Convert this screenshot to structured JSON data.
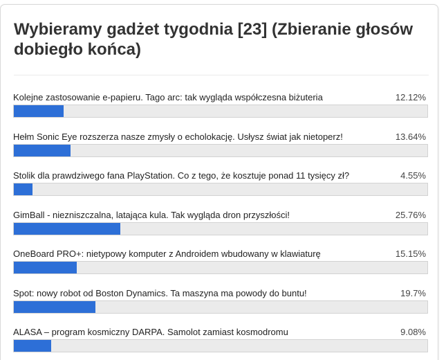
{
  "poll": {
    "title": "Wybieramy gadżet tygodnia [23] (Zbieranie głosów dobiegło końca)",
    "bar_color": "#2d6fd7",
    "options": [
      {
        "label": "Kolejne zastosowanie e-papieru. Tago arc: tak wygląda współczesna biżuteria",
        "percent_text": "12.12%",
        "percent": 12.12
      },
      {
        "label": "Hełm Sonic Eye rozszerza nasze zmysły o echolokację. Usłysz świat jak nietoperz!",
        "percent_text": "13.64%",
        "percent": 13.64
      },
      {
        "label": "Stolik dla prawdziwego fana PlayStation. Co z tego, że kosztuje ponad 11 tysięcy zł?",
        "percent_text": "4.55%",
        "percent": 4.55
      },
      {
        "label": "GimBall - niezniszczalna, latająca kula. Tak wygląda dron przyszłości!",
        "percent_text": "25.76%",
        "percent": 25.76
      },
      {
        "label": "OneBoard PRO+: nietypowy komputer z Androidem wbudowany w klawiaturę",
        "percent_text": "15.15%",
        "percent": 15.15
      },
      {
        "label": "Spot: nowy robot od Boston Dynamics. Ta maszyna ma powody do buntu!",
        "percent_text": "19.7%",
        "percent": 19.7
      },
      {
        "label": "ALASA – program kosmiczny DARPA. Samolot zamiast kosmodromu",
        "percent_text": "9.08%",
        "percent": 9.08
      }
    ]
  }
}
